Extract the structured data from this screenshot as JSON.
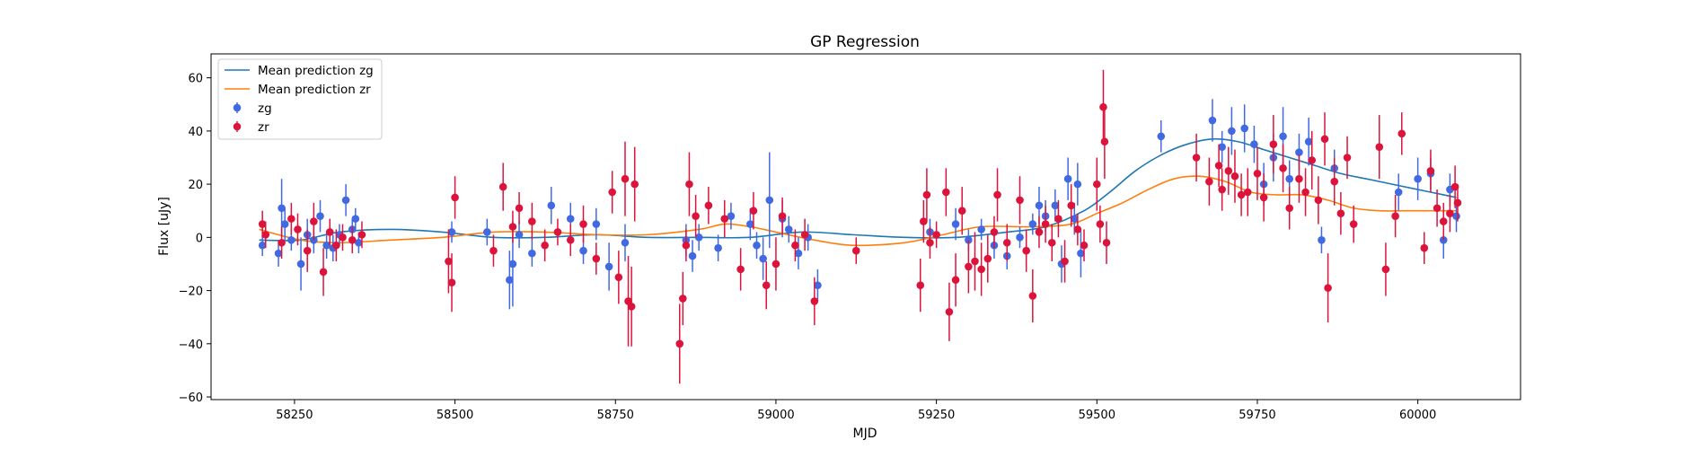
{
  "chart_data": {
    "type": "scatter",
    "title": "GP Regression",
    "xlabel": "MJD",
    "ylabel": "Flux [uJy]",
    "xlim": [
      58120,
      60160
    ],
    "ylim": [
      -61,
      69
    ],
    "xticks": [
      58250,
      58500,
      58750,
      59000,
      59250,
      59500,
      59750,
      60000
    ],
    "yticks": [
      -60,
      -40,
      -20,
      0,
      20,
      40,
      60
    ],
    "grid": false,
    "legend_position": "top-left",
    "lines": [
      {
        "name": "Mean prediction zg",
        "color": "#1f77b4",
        "x": [
          58195,
          58260,
          58320,
          58400,
          58480,
          58560,
          58640,
          58720,
          58800,
          58880,
          58960,
          59040,
          59120,
          59200,
          59280,
          59360,
          59420,
          59480,
          59520,
          59560,
          59600,
          59640,
          59680,
          59720,
          59760,
          59800,
          59840,
          59880,
          59920,
          59960,
          60000,
          60040,
          60060
        ],
        "y": [
          -1,
          -1,
          2,
          3,
          2,
          0,
          0,
          1,
          0,
          0,
          0,
          2,
          1,
          0,
          0,
          2,
          4,
          10,
          17,
          25,
          31,
          35,
          37,
          36,
          33,
          30,
          27,
          24,
          22,
          20,
          18,
          16,
          15
        ]
      },
      {
        "name": "Mean prediction zr",
        "color": "#ff7f0e",
        "x": [
          58195,
          58260,
          58320,
          58400,
          58480,
          58560,
          58640,
          58720,
          58800,
          58880,
          58920,
          58960,
          59000,
          59060,
          59120,
          59200,
          59260,
          59320,
          59400,
          59460,
          59500,
          59540,
          59580,
          59620,
          59660,
          59700,
          59740,
          59780,
          59820,
          59860,
          59900,
          59940,
          59980,
          60020,
          60060
        ],
        "y": [
          3,
          -1,
          -2,
          -1,
          0,
          2,
          2,
          1,
          1,
          3,
          5,
          4,
          2,
          -1,
          -3,
          -2,
          1,
          4,
          4,
          5,
          9,
          13,
          18,
          22,
          23,
          21,
          17,
          16,
          16,
          14,
          11,
          10,
          10,
          10,
          10
        ]
      }
    ],
    "series": [
      {
        "name": "zg",
        "color": "#4169e1",
        "points": [
          [
            58200,
            -3,
            4
          ],
          [
            58225,
            -6,
            5
          ],
          [
            58230,
            11,
            11
          ],
          [
            58235,
            5,
            6
          ],
          [
            58245,
            -1,
            4
          ],
          [
            58260,
            -10,
            10
          ],
          [
            58270,
            1,
            6
          ],
          [
            58280,
            -1,
            5
          ],
          [
            58290,
            8,
            6
          ],
          [
            58300,
            -3,
            5
          ],
          [
            58310,
            -4,
            5
          ],
          [
            58320,
            1,
            4
          ],
          [
            58330,
            14,
            6
          ],
          [
            58340,
            3,
            4
          ],
          [
            58345,
            7,
            4
          ],
          [
            58350,
            -2,
            4
          ],
          [
            58495,
            2,
            4
          ],
          [
            58550,
            2,
            5
          ],
          [
            58585,
            -16,
            11
          ],
          [
            58590,
            -10,
            16
          ],
          [
            58600,
            1,
            5
          ],
          [
            58620,
            -6,
            5
          ],
          [
            58650,
            12,
            7
          ],
          [
            58680,
            7,
            6
          ],
          [
            58700,
            -5,
            5
          ],
          [
            58720,
            5,
            6
          ],
          [
            58740,
            -11,
            9
          ],
          [
            58765,
            -2,
            7
          ],
          [
            58860,
            -1,
            6
          ],
          [
            58870,
            -7,
            6
          ],
          [
            58880,
            0,
            5
          ],
          [
            58910,
            -4,
            5
          ],
          [
            58930,
            8,
            5
          ],
          [
            58960,
            5,
            6
          ],
          [
            58970,
            -3,
            5
          ],
          [
            58980,
            -8,
            8
          ],
          [
            58990,
            14,
            18
          ],
          [
            59010,
            7,
            7
          ],
          [
            59020,
            3,
            5
          ],
          [
            59035,
            -6,
            6
          ],
          [
            59050,
            0,
            5
          ],
          [
            59065,
            -18,
            6
          ],
          [
            59240,
            2,
            5
          ],
          [
            59280,
            5,
            6
          ],
          [
            59300,
            -1,
            4
          ],
          [
            59320,
            3,
            4
          ],
          [
            59340,
            -3,
            5
          ],
          [
            59360,
            -7,
            5
          ],
          [
            59380,
            0,
            4
          ],
          [
            59400,
            5,
            4
          ],
          [
            59410,
            12,
            7
          ],
          [
            59420,
            8,
            6
          ],
          [
            59435,
            12,
            6
          ],
          [
            59445,
            -10,
            7
          ],
          [
            59455,
            22,
            8
          ],
          [
            59465,
            7,
            6
          ],
          [
            59470,
            20,
            8
          ],
          [
            59475,
            -6,
            9
          ],
          [
            59600,
            38,
            6
          ],
          [
            59680,
            44,
            8
          ],
          [
            59695,
            34,
            6
          ],
          [
            59710,
            40,
            9
          ],
          [
            59730,
            41,
            9
          ],
          [
            59745,
            35,
            7
          ],
          [
            59760,
            20,
            8
          ],
          [
            59775,
            30,
            9
          ],
          [
            59790,
            38,
            11
          ],
          [
            59800,
            22,
            7
          ],
          [
            59815,
            32,
            7
          ],
          [
            59830,
            36,
            9
          ],
          [
            59850,
            -1,
            5
          ],
          [
            59870,
            26,
            7
          ],
          [
            59970,
            17,
            7
          ],
          [
            60000,
            22,
            8
          ],
          [
            60020,
            24,
            6
          ],
          [
            60040,
            -1,
            7
          ],
          [
            60050,
            18,
            6
          ],
          [
            60060,
            8,
            6
          ]
        ]
      },
      {
        "name": "zr",
        "color": "#dc143c",
        "points": [
          [
            58200,
            5,
            5
          ],
          [
            58205,
            1,
            5
          ],
          [
            58230,
            -2,
            6
          ],
          [
            58245,
            7,
            6
          ],
          [
            58255,
            3,
            6
          ],
          [
            58270,
            -5,
            8
          ],
          [
            58280,
            6,
            7
          ],
          [
            58295,
            -13,
            9
          ],
          [
            58305,
            2,
            5
          ],
          [
            58315,
            -3,
            6
          ],
          [
            58325,
            0,
            5
          ],
          [
            58340,
            -1,
            5
          ],
          [
            58355,
            1,
            5
          ],
          [
            58490,
            -9,
            12
          ],
          [
            58495,
            -17,
            11
          ],
          [
            58500,
            15,
            8
          ],
          [
            58560,
            -5,
            6
          ],
          [
            58575,
            19,
            9
          ],
          [
            58590,
            4,
            6
          ],
          [
            58600,
            11,
            6
          ],
          [
            58620,
            6,
            7
          ],
          [
            58640,
            -3,
            6
          ],
          [
            58660,
            2,
            5
          ],
          [
            58680,
            -1,
            6
          ],
          [
            58700,
            5,
            7
          ],
          [
            58720,
            -8,
            6
          ],
          [
            58745,
            17,
            8
          ],
          [
            58755,
            -15,
            10
          ],
          [
            58765,
            22,
            14
          ],
          [
            58770,
            -24,
            17
          ],
          [
            58775,
            -26,
            15
          ],
          [
            58780,
            20,
            14
          ],
          [
            58850,
            -40,
            15
          ],
          [
            58855,
            -23,
            10
          ],
          [
            58860,
            -3,
            6
          ],
          [
            58865,
            20,
            12
          ],
          [
            58875,
            8,
            8
          ],
          [
            58895,
            12,
            7
          ],
          [
            58920,
            7,
            7
          ],
          [
            58945,
            -12,
            8
          ],
          [
            58965,
            10,
            7
          ],
          [
            58985,
            -18,
            9
          ],
          [
            59000,
            -10,
            10
          ],
          [
            59010,
            8,
            7
          ],
          [
            59030,
            -3,
            6
          ],
          [
            59045,
            1,
            6
          ],
          [
            59060,
            -24,
            9
          ],
          [
            59125,
            -5,
            5
          ],
          [
            59225,
            -18,
            10
          ],
          [
            59230,
            6,
            8
          ],
          [
            59235,
            16,
            10
          ],
          [
            59240,
            -2,
            6
          ],
          [
            59250,
            1,
            5
          ],
          [
            59265,
            17,
            9
          ],
          [
            59270,
            -28,
            11
          ],
          [
            59280,
            -16,
            10
          ],
          [
            59290,
            10,
            9
          ],
          [
            59300,
            -11,
            10
          ],
          [
            59310,
            -9,
            11
          ],
          [
            59320,
            -12,
            10
          ],
          [
            59330,
            -8,
            9
          ],
          [
            59340,
            2,
            6
          ],
          [
            59345,
            16,
            10
          ],
          [
            59360,
            -2,
            7
          ],
          [
            59380,
            14,
            9
          ],
          [
            59390,
            -5,
            8
          ],
          [
            59400,
            -22,
            10
          ],
          [
            59410,
            2,
            6
          ],
          [
            59420,
            5,
            7
          ],
          [
            59430,
            -2,
            7
          ],
          [
            59440,
            7,
            7
          ],
          [
            59450,
            -9,
            8
          ],
          [
            59460,
            12,
            8
          ],
          [
            59470,
            3,
            6
          ],
          [
            59480,
            -3,
            6
          ],
          [
            59500,
            20,
            10
          ],
          [
            59505,
            5,
            7
          ],
          [
            59510,
            49,
            14
          ],
          [
            59512,
            36,
            14
          ],
          [
            59515,
            -2,
            8
          ],
          [
            59655,
            30,
            9
          ],
          [
            59675,
            21,
            9
          ],
          [
            59690,
            27,
            8
          ],
          [
            59695,
            18,
            8
          ],
          [
            59705,
            25,
            9
          ],
          [
            59715,
            23,
            10
          ],
          [
            59725,
            16,
            8
          ],
          [
            59735,
            17,
            9
          ],
          [
            59750,
            24,
            10
          ],
          [
            59760,
            15,
            9
          ],
          [
            59775,
            35,
            11
          ],
          [
            59790,
            26,
            9
          ],
          [
            59800,
            11,
            8
          ],
          [
            59815,
            22,
            9
          ],
          [
            59825,
            17,
            9
          ],
          [
            59835,
            29,
            11
          ],
          [
            59845,
            14,
            9
          ],
          [
            59855,
            37,
            10
          ],
          [
            59860,
            -19,
            13
          ],
          [
            59870,
            21,
            9
          ],
          [
            59880,
            9,
            8
          ],
          [
            59890,
            30,
            8
          ],
          [
            59900,
            5,
            7
          ],
          [
            59940,
            34,
            12
          ],
          [
            59950,
            -12,
            10
          ],
          [
            59965,
            8,
            8
          ],
          [
            59975,
            39,
            8
          ],
          [
            60010,
            -4,
            6
          ],
          [
            60020,
            25,
            8
          ],
          [
            60030,
            11,
            7
          ],
          [
            60040,
            6,
            7
          ],
          [
            60050,
            9,
            7
          ],
          [
            60058,
            19,
            8
          ],
          [
            60062,
            13,
            7
          ]
        ]
      }
    ]
  }
}
